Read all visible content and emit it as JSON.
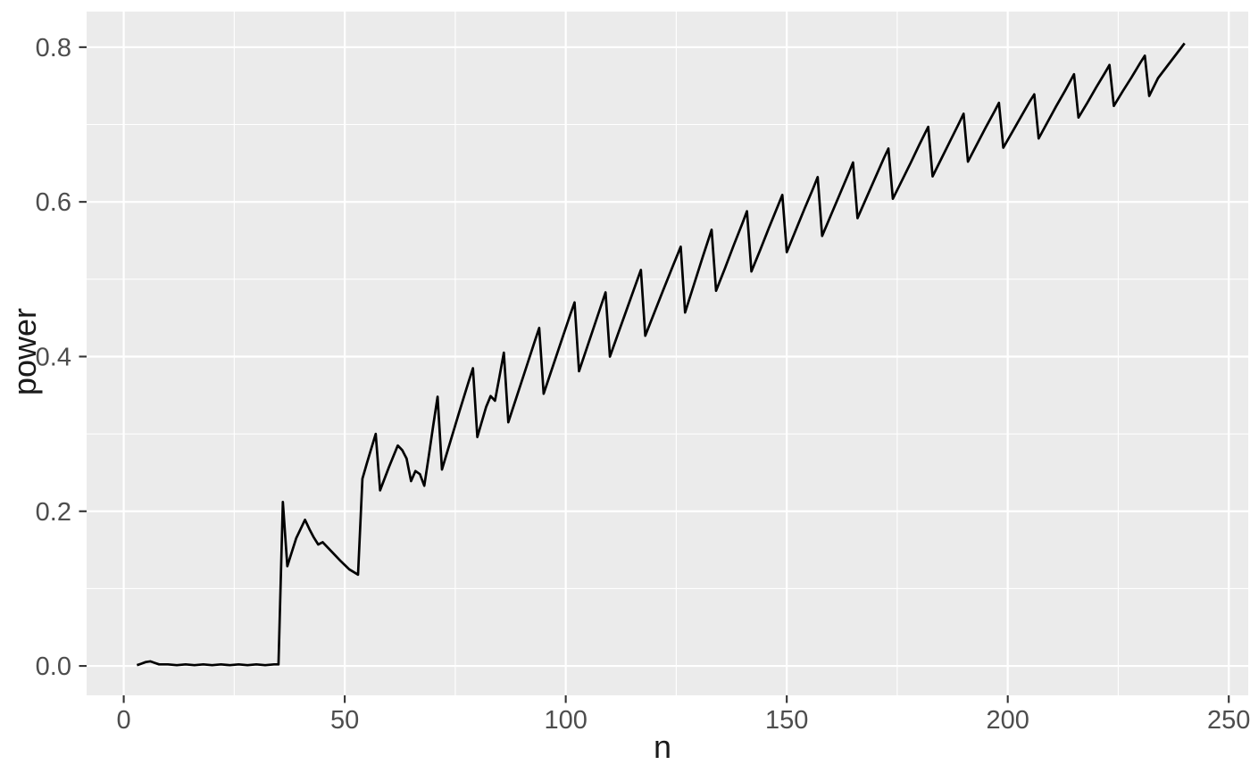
{
  "chart_data": {
    "type": "line",
    "title": "",
    "xlabel": "n",
    "ylabel": "power",
    "legend": false,
    "grid": true,
    "panel_bg": "#EBEBEB",
    "grid_major_color": "#FFFFFF",
    "grid_minor_color": "#FFFFFF",
    "line_color": "#000000",
    "tick_mark_color": "#333333",
    "tick_label_color": "#4D4D4D",
    "axis_title_color": "#1A1A1A",
    "xlim": [
      -8.4,
      254.4
    ],
    "ylim": [
      -0.038,
      0.846
    ],
    "x_ticks": {
      "values": [
        0,
        50,
        100,
        150,
        200,
        250
      ],
      "labels": [
        "0",
        "50",
        "100",
        "150",
        "200",
        "250"
      ]
    },
    "y_ticks": {
      "values": [
        0.0,
        0.2,
        0.4,
        0.6,
        0.8
      ],
      "labels": [
        "0.0",
        "0.2",
        "0.4",
        "0.6",
        "0.8"
      ]
    },
    "x_minor": [
      25,
      75,
      125,
      175,
      225
    ],
    "y_minor": [
      0.1,
      0.3,
      0.5,
      0.7
    ],
    "series": [
      {
        "name": "power",
        "points": [
          [
            3,
            0.001
          ],
          [
            4,
            0.003
          ],
          [
            5,
            0.005
          ],
          [
            6,
            0.006
          ],
          [
            7,
            0.004
          ],
          [
            8,
            0.002
          ],
          [
            10,
            0.002
          ],
          [
            12,
            0.001
          ],
          [
            14,
            0.002
          ],
          [
            16,
            0.001
          ],
          [
            18,
            0.002
          ],
          [
            20,
            0.001
          ],
          [
            22,
            0.002
          ],
          [
            24,
            0.001
          ],
          [
            26,
            0.002
          ],
          [
            28,
            0.001
          ],
          [
            30,
            0.002
          ],
          [
            32,
            0.001
          ],
          [
            34,
            0.002
          ],
          [
            35,
            0.002
          ],
          [
            36,
            0.212
          ],
          [
            37,
            0.129
          ],
          [
            39,
            0.165
          ],
          [
            41,
            0.189
          ],
          [
            42,
            0.177
          ],
          [
            43,
            0.166
          ],
          [
            44,
            0.157
          ],
          [
            45,
            0.16
          ],
          [
            47,
            0.148
          ],
          [
            49,
            0.136
          ],
          [
            51,
            0.125
          ],
          [
            53,
            0.118
          ],
          [
            54,
            0.242
          ],
          [
            55,
            0.262
          ],
          [
            56,
            0.281
          ],
          [
            57,
            0.3
          ],
          [
            58,
            0.227
          ],
          [
            60,
            0.257
          ],
          [
            62,
            0.285
          ],
          [
            63,
            0.279
          ],
          [
            64,
            0.268
          ],
          [
            65,
            0.239
          ],
          [
            66,
            0.252
          ],
          [
            67,
            0.248
          ],
          [
            68,
            0.233
          ],
          [
            69,
            0.271
          ],
          [
            70,
            0.31
          ],
          [
            71,
            0.348
          ],
          [
            72,
            0.254
          ],
          [
            74,
            0.292
          ],
          [
            76,
            0.33
          ],
          [
            78,
            0.367
          ],
          [
            79,
            0.385
          ],
          [
            80,
            0.296
          ],
          [
            82,
            0.335
          ],
          [
            83,
            0.349
          ],
          [
            84,
            0.343
          ],
          [
            85,
            0.374
          ],
          [
            86,
            0.405
          ],
          [
            87,
            0.315
          ],
          [
            89,
            0.35
          ],
          [
            91,
            0.385
          ],
          [
            93,
            0.42
          ],
          [
            94,
            0.437
          ],
          [
            95,
            0.352
          ],
          [
            97,
            0.386
          ],
          [
            99,
            0.42
          ],
          [
            101,
            0.454
          ],
          [
            102,
            0.47
          ],
          [
            103,
            0.381
          ],
          [
            105,
            0.415
          ],
          [
            107,
            0.449
          ],
          [
            109,
            0.483
          ],
          [
            110,
            0.4
          ],
          [
            112,
            0.432
          ],
          [
            114,
            0.464
          ],
          [
            116,
            0.496
          ],
          [
            117,
            0.512
          ],
          [
            118,
            0.427
          ],
          [
            120,
            0.456
          ],
          [
            122,
            0.485
          ],
          [
            124,
            0.514
          ],
          [
            126,
            0.542
          ],
          [
            127,
            0.457
          ],
          [
            129,
            0.493
          ],
          [
            131,
            0.529
          ],
          [
            133,
            0.564
          ],
          [
            134,
            0.485
          ],
          [
            136,
            0.514
          ],
          [
            138,
            0.544
          ],
          [
            140,
            0.573
          ],
          [
            141,
            0.588
          ],
          [
            142,
            0.51
          ],
          [
            144,
            0.538
          ],
          [
            146,
            0.567
          ],
          [
            148,
            0.595
          ],
          [
            149,
            0.609
          ],
          [
            150,
            0.535
          ],
          [
            152,
            0.563
          ],
          [
            154,
            0.591
          ],
          [
            156,
            0.618
          ],
          [
            157,
            0.632
          ],
          [
            158,
            0.556
          ],
          [
            160,
            0.583
          ],
          [
            162,
            0.61
          ],
          [
            164,
            0.637
          ],
          [
            165,
            0.651
          ],
          [
            166,
            0.579
          ],
          [
            168,
            0.605
          ],
          [
            170,
            0.631
          ],
          [
            172,
            0.657
          ],
          [
            173,
            0.669
          ],
          [
            174,
            0.604
          ],
          [
            176,
            0.627
          ],
          [
            178,
            0.65
          ],
          [
            180,
            0.674
          ],
          [
            182,
            0.697
          ],
          [
            183,
            0.633
          ],
          [
            185,
            0.656
          ],
          [
            187,
            0.679
          ],
          [
            189,
            0.702
          ],
          [
            190,
            0.714
          ],
          [
            191,
            0.652
          ],
          [
            193,
            0.674
          ],
          [
            195,
            0.696
          ],
          [
            197,
            0.717
          ],
          [
            198,
            0.728
          ],
          [
            199,
            0.67
          ],
          [
            201,
            0.69
          ],
          [
            203,
            0.71
          ],
          [
            205,
            0.73
          ],
          [
            206,
            0.739
          ],
          [
            207,
            0.682
          ],
          [
            209,
            0.703
          ],
          [
            211,
            0.724
          ],
          [
            213,
            0.744
          ],
          [
            215,
            0.765
          ],
          [
            216,
            0.709
          ],
          [
            218,
            0.728
          ],
          [
            220,
            0.748
          ],
          [
            222,
            0.767
          ],
          [
            223,
            0.777
          ],
          [
            224,
            0.724
          ],
          [
            226,
            0.743
          ],
          [
            228,
            0.761
          ],
          [
            230,
            0.78
          ],
          [
            231,
            0.789
          ],
          [
            232,
            0.737
          ],
          [
            234,
            0.76
          ],
          [
            236,
            0.775
          ],
          [
            238,
            0.79
          ],
          [
            240,
            0.805
          ]
        ]
      }
    ]
  }
}
